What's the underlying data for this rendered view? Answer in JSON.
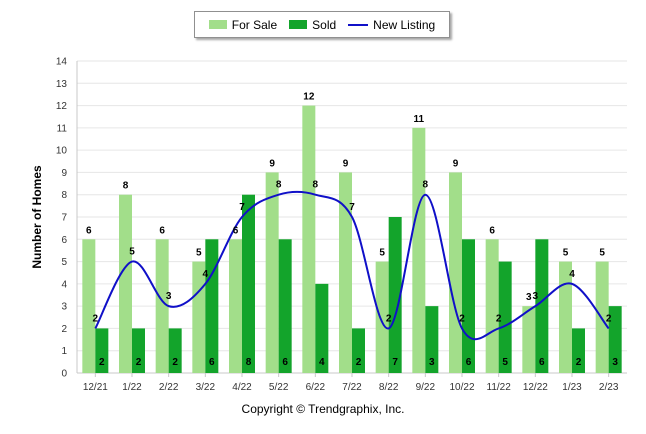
{
  "chart_data": {
    "type": "bar",
    "categories": [
      "12/21",
      "1/22",
      "2/22",
      "3/22",
      "4/22",
      "5/22",
      "6/22",
      "7/22",
      "8/22",
      "9/22",
      "10/22",
      "11/22",
      "12/22",
      "1/23",
      "2/23"
    ],
    "series": [
      {
        "name": "For Sale",
        "kind": "bar",
        "color": "#a2de8a",
        "values": [
          6,
          8,
          6,
          5,
          6,
          9,
          12,
          9,
          5,
          11,
          9,
          6,
          3,
          5,
          5
        ]
      },
      {
        "name": "Sold",
        "kind": "bar",
        "color": "#13a42b",
        "values": [
          2,
          2,
          2,
          6,
          8,
          6,
          4,
          2,
          7,
          3,
          6,
          5,
          6,
          2,
          3
        ]
      },
      {
        "name": "New Listing",
        "kind": "line",
        "color": "#1010c8",
        "values": [
          2,
          5,
          3,
          4,
          7,
          8,
          8,
          7,
          2,
          8,
          2,
          2,
          3,
          4,
          2
        ]
      }
    ],
    "ylabel": "Number of Homes",
    "ylim": [
      0,
      14
    ],
    "yticks": [
      0,
      1,
      2,
      3,
      4,
      5,
      6,
      7,
      8,
      9,
      10,
      11,
      12,
      13,
      14
    ],
    "grid": true,
    "legend_position": "top-center"
  },
  "footer": {
    "copyright": "Copyright © Trendgraphix, Inc."
  }
}
